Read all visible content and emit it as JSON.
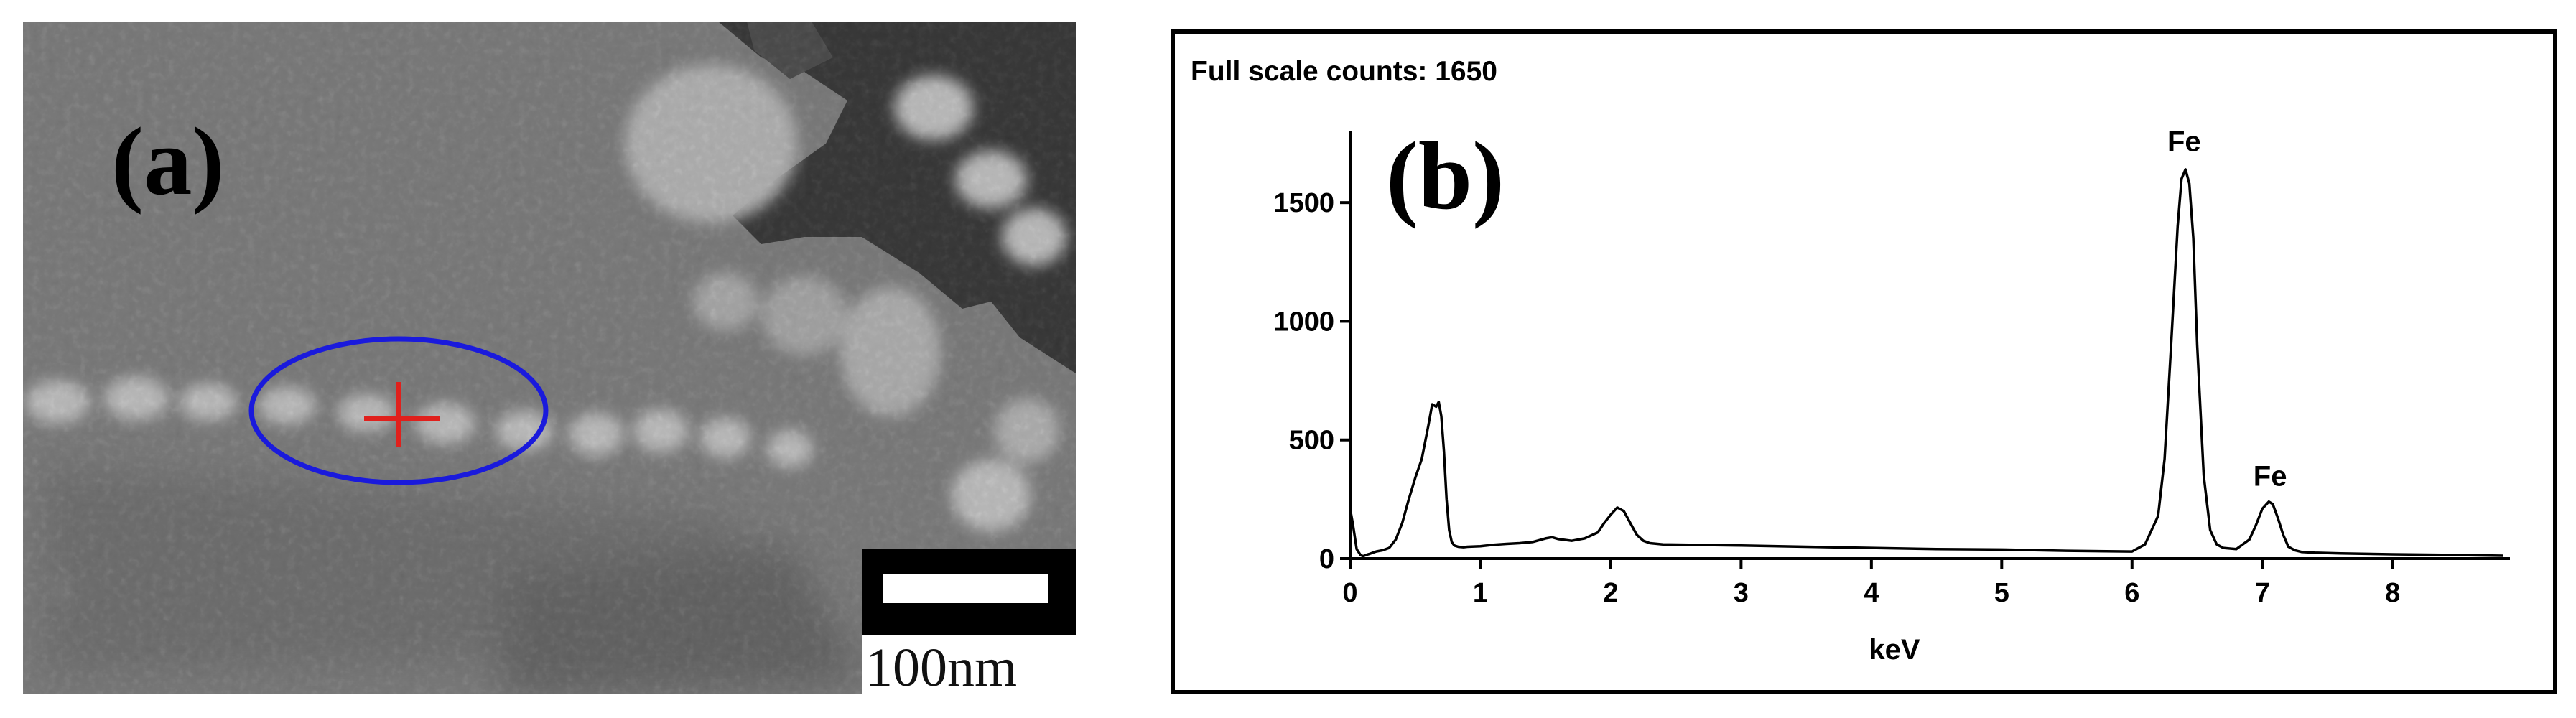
{
  "figure": {
    "panel_a": {
      "label": "(a)",
      "scale_bar_text": "100nm",
      "marker_color": "#e0201c",
      "ellipse_color": "#1a1adc"
    },
    "panel_b": {
      "label": "(b)",
      "header_text": "Full scale counts: 1650"
    }
  },
  "chart_data": {
    "type": "line",
    "title": "",
    "xlabel": "keV",
    "ylabel": "",
    "xlim": [
      0,
      8.9
    ],
    "ylim": [
      0,
      1800
    ],
    "xticks": [
      0,
      1,
      2,
      3,
      4,
      5,
      6,
      7,
      8
    ],
    "yticks": [
      0,
      500,
      1000,
      1500
    ],
    "xtick_labels": [
      "0",
      "1",
      "2",
      "3",
      "4",
      "5",
      "6",
      "7",
      "8"
    ],
    "ytick_labels": [
      "0",
      "500",
      "1000",
      "1500"
    ],
    "grid": false,
    "line_color": "#000000",
    "full_scale_counts": 1650,
    "series": [
      {
        "x": [
          0.0,
          0.02,
          0.05,
          0.08,
          0.1,
          0.12,
          0.15,
          0.2,
          0.25,
          0.3,
          0.35,
          0.4,
          0.45,
          0.5,
          0.55,
          0.6,
          0.63,
          0.66,
          0.68,
          0.7,
          0.72,
          0.74,
          0.76,
          0.78,
          0.8,
          0.83,
          0.87,
          0.9,
          1.0,
          1.1,
          1.2,
          1.3,
          1.4,
          1.5,
          1.55,
          1.6,
          1.7,
          1.8,
          1.9,
          1.95,
          2.0,
          2.05,
          2.1,
          2.15,
          2.2,
          2.25,
          2.3,
          2.4,
          2.6,
          3.0,
          3.5,
          4.0,
          4.5,
          5.0,
          5.5,
          6.0,
          6.1,
          6.2,
          6.25,
          6.3,
          6.35,
          6.38,
          6.41,
          6.44,
          6.47,
          6.5,
          6.55,
          6.6,
          6.65,
          6.7,
          6.8,
          6.9,
          6.95,
          7.0,
          7.05,
          7.08,
          7.12,
          7.16,
          7.2,
          7.25,
          7.3,
          7.4,
          7.6,
          8.0,
          8.5,
          8.85
        ],
        "y": [
          210,
          150,
          40,
          15,
          10,
          15,
          20,
          30,
          35,
          45,
          80,
          150,
          250,
          340,
          420,
          560,
          650,
          640,
          660,
          600,
          450,
          250,
          120,
          70,
          55,
          50,
          48,
          50,
          52,
          58,
          62,
          65,
          70,
          85,
          90,
          82,
          75,
          85,
          110,
          150,
          185,
          215,
          200,
          150,
          100,
          75,
          65,
          60,
          58,
          55,
          50,
          45,
          40,
          38,
          33,
          30,
          60,
          180,
          420,
          900,
          1400,
          1600,
          1640,
          1580,
          1350,
          900,
          350,
          120,
          60,
          45,
          40,
          80,
          140,
          210,
          240,
          230,
          170,
          100,
          50,
          35,
          28,
          25,
          22,
          18,
          15,
          12
        ]
      }
    ],
    "annotations": [
      {
        "text": "Fe",
        "x": 6.4,
        "y": 1650
      },
      {
        "text": "Fe",
        "x": 7.06,
        "y": 240
      }
    ]
  }
}
